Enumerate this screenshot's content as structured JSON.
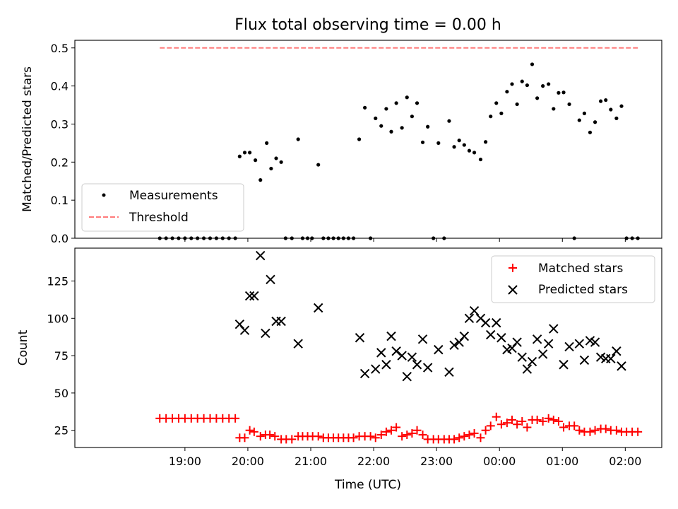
{
  "chart_data": [
    {
      "type": "scatter",
      "title": "Flux total observing time = 0.00 h",
      "xlabel": "",
      "ylabel": "Matched/Predicted stars",
      "xlim": [
        17.25,
        26.58
      ],
      "ylim": [
        0,
        0.52
      ],
      "yticks": [
        0.0,
        0.1,
        0.2,
        0.3,
        0.4,
        0.5
      ],
      "ytick_labels": [
        "0.0",
        "0.1",
        "0.2",
        "0.3",
        "0.4",
        "0.5"
      ],
      "legend_position": "lower-left",
      "series": [
        {
          "name": "Measurements",
          "marker": "dot",
          "color": "#000000",
          "x": [
            18.6,
            18.7,
            18.8,
            18.9,
            19.0,
            19.1,
            19.2,
            19.3,
            19.4,
            19.5,
            19.6,
            19.7,
            19.8,
            19.87,
            19.95,
            20.03,
            20.12,
            20.2,
            20.3,
            20.37,
            20.45,
            20.53,
            20.6,
            20.7,
            20.8,
            20.87,
            20.95,
            21.02,
            21.12,
            21.2,
            21.28,
            21.36,
            21.44,
            21.52,
            21.6,
            21.68,
            21.77,
            21.86,
            21.95,
            22.03,
            22.12,
            22.2,
            22.28,
            22.36,
            22.45,
            22.53,
            22.61,
            22.69,
            22.78,
            22.86,
            22.95,
            23.03,
            23.12,
            23.2,
            23.28,
            23.36,
            23.44,
            23.52,
            23.6,
            23.7,
            23.78,
            23.86,
            23.95,
            24.03,
            24.12,
            24.2,
            24.28,
            24.36,
            24.44,
            24.52,
            24.6,
            24.69,
            24.78,
            24.86,
            24.94,
            25.02,
            25.11,
            25.19,
            25.27,
            25.35,
            25.44,
            25.52,
            25.61,
            25.69,
            25.77,
            25.86,
            25.94,
            26.02,
            26.11,
            26.2
          ],
          "y": [
            0,
            0,
            0,
            0,
            0,
            0,
            0,
            0,
            0,
            0,
            0,
            0,
            0,
            0.215,
            0.225,
            0.225,
            0.205,
            0.153,
            0.25,
            0.183,
            0.21,
            0.2,
            0,
            0,
            0.26,
            0,
            0,
            0,
            0.193,
            0,
            0,
            0,
            0,
            0,
            0,
            0,
            0.26,
            0.343,
            0,
            0.315,
            0.295,
            0.34,
            0.28,
            0.355,
            0.29,
            0.37,
            0.32,
            0.355,
            0.252,
            0.293,
            0,
            0.25,
            0,
            0.308,
            0.24,
            0.257,
            0.245,
            0.23,
            0.225,
            0.207,
            0.253,
            0.32,
            0.355,
            0.328,
            0.385,
            0.405,
            0.352,
            0.412,
            0.402,
            0.457,
            0.368,
            0.4,
            0.405,
            0.34,
            0.382,
            0.383,
            0.352,
            0,
            0.31,
            0.328,
            0.278,
            0.305,
            0.36,
            0.363,
            0.338,
            0.315,
            0.347,
            0,
            0,
            0
          ]
        },
        {
          "name": "Threshold",
          "style": "dashed",
          "color": "#ff7b7b",
          "x": [
            18.6,
            26.2
          ],
          "y": [
            0.5,
            0.5
          ]
        }
      ]
    },
    {
      "type": "scatter",
      "title": "",
      "xlabel": "Time (UTC)",
      "ylabel": "Count",
      "xlim": [
        17.25,
        26.58
      ],
      "ylim": [
        13.5,
        147
      ],
      "yticks": [
        25,
        50,
        75,
        100,
        125
      ],
      "ytick_labels": [
        "25",
        "50",
        "75",
        "100",
        "125"
      ],
      "xticks": [
        19,
        20,
        21,
        22,
        23,
        24,
        25,
        26
      ],
      "xtick_labels": [
        "19:00",
        "20:00",
        "21:00",
        "22:00",
        "23:00",
        "00:00",
        "01:00",
        "02:00"
      ],
      "legend_position": "top-right",
      "series": [
        {
          "name": "Matched stars",
          "marker": "plus",
          "color": "#ff0000",
          "x": [
            18.6,
            18.7,
            18.8,
            18.9,
            19.0,
            19.1,
            19.2,
            19.3,
            19.4,
            19.5,
            19.6,
            19.7,
            19.8,
            19.87,
            19.95,
            20.03,
            20.1,
            20.2,
            20.28,
            20.35,
            20.43,
            20.53,
            20.61,
            20.7,
            20.8,
            20.87,
            20.95,
            21.03,
            21.12,
            21.2,
            21.28,
            21.36,
            21.44,
            21.52,
            21.6,
            21.68,
            21.77,
            21.86,
            21.95,
            22.03,
            22.12,
            22.2,
            22.28,
            22.36,
            22.45,
            22.53,
            22.61,
            22.69,
            22.78,
            22.86,
            22.95,
            23.03,
            23.12,
            23.2,
            23.28,
            23.36,
            23.44,
            23.52,
            23.6,
            23.7,
            23.78,
            23.86,
            23.95,
            24.03,
            24.12,
            24.2,
            24.28,
            24.36,
            24.44,
            24.52,
            24.6,
            24.69,
            24.78,
            24.86,
            24.94,
            25.02,
            25.11,
            25.19,
            25.27,
            25.35,
            25.44,
            25.52,
            25.61,
            25.69,
            25.77,
            25.86,
            25.94,
            26.02,
            26.11,
            26.2
          ],
          "y": [
            33,
            33,
            33,
            33,
            33,
            33,
            33,
            33,
            33,
            33,
            33,
            33,
            33,
            20,
            20,
            25,
            24,
            21,
            22,
            22,
            21,
            19,
            19,
            19,
            21,
            21,
            21,
            21,
            21,
            20,
            20,
            20,
            20,
            20,
            20,
            20,
            21,
            21,
            21,
            20,
            22,
            24,
            25,
            27,
            21,
            22,
            23,
            25,
            22,
            19,
            19,
            19,
            19,
            19,
            19,
            20,
            21,
            22,
            23,
            20,
            25,
            28,
            34,
            29,
            30,
            32,
            29,
            31,
            27,
            32,
            32,
            31,
            33,
            32,
            31,
            27,
            28,
            28,
            25,
            24,
            24,
            25,
            26,
            26,
            25,
            25,
            24,
            24,
            24,
            24
          ]
        },
        {
          "name": "Predicted stars",
          "marker": "x",
          "color": "#000000",
          "x": [
            19.87,
            19.95,
            20.03,
            20.1,
            20.2,
            20.28,
            20.36,
            20.45,
            20.53,
            20.8,
            21.12,
            21.78,
            21.86,
            22.03,
            22.12,
            22.2,
            22.28,
            22.36,
            22.45,
            22.53,
            22.61,
            22.69,
            22.78,
            22.86,
            23.03,
            23.2,
            23.28,
            23.36,
            23.44,
            23.52,
            23.6,
            23.7,
            23.78,
            23.86,
            23.95,
            24.03,
            24.12,
            24.2,
            24.28,
            24.36,
            24.44,
            24.52,
            24.6,
            24.69,
            24.78,
            24.86,
            25.02,
            25.11,
            25.27,
            25.35,
            25.44,
            25.52,
            25.61,
            25.69,
            25.77,
            25.86,
            25.94
          ],
          "y": [
            96,
            92,
            115,
            115,
            142,
            90,
            126,
            98,
            98,
            83,
            107,
            87,
            63,
            66,
            77,
            69,
            88,
            78,
            75,
            61,
            74,
            69,
            86,
            67,
            79,
            64,
            82,
            84,
            88,
            100,
            105,
            100,
            97,
            89,
            97,
            87,
            79,
            80,
            84,
            74,
            66,
            71,
            86,
            76,
            83,
            93,
            69,
            81,
            83,
            72,
            85,
            84,
            74,
            73,
            73,
            78,
            68
          ]
        }
      ]
    }
  ],
  "legend": {
    "top": [
      "Measurements",
      "Threshold"
    ],
    "bottom": [
      "Matched stars",
      "Predicted stars"
    ]
  }
}
